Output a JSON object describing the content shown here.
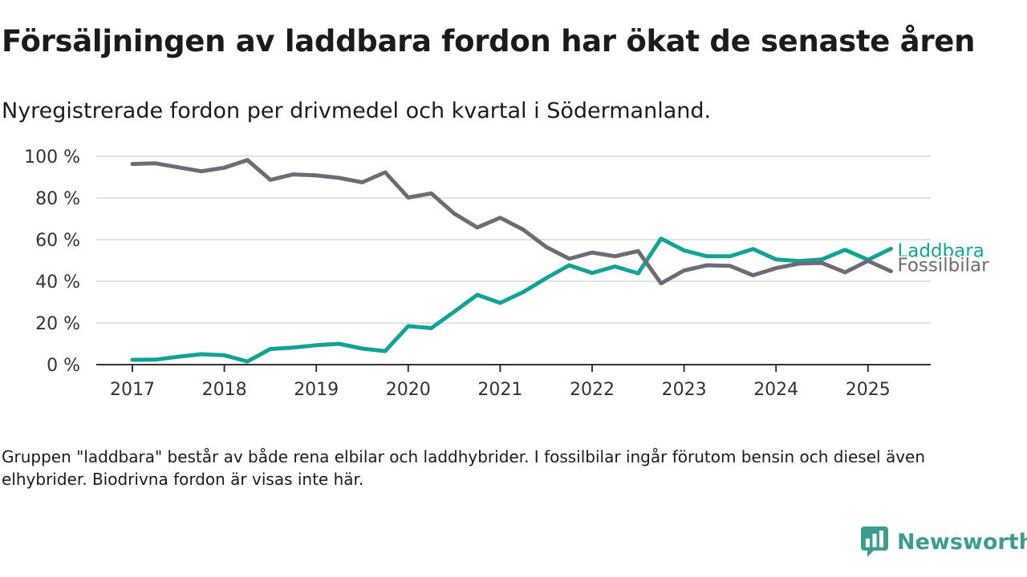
{
  "title": "Försäljningen av laddbara fordon har ökat de senaste åren",
  "subtitle": "Nyregistrerade fordon per drivmedel och kvartal i Södermanland.",
  "note": "Gruppen \"laddbara\" består av både rena elbilar och laddhybrider. I fossilbilar ingår förutom bensin och diesel även elhybrider. Biodrivna fordon är visas inte här.",
  "brand": {
    "name": "Newsworthy",
    "color": "#3d9c8e"
  },
  "chart_data": {
    "type": "line",
    "x": [
      2017.0,
      2017.25,
      2017.5,
      2017.75,
      2018.0,
      2018.25,
      2018.5,
      2018.75,
      2019.0,
      2019.25,
      2019.5,
      2019.75,
      2020.0,
      2020.25,
      2020.5,
      2020.75,
      2021.0,
      2021.25,
      2021.5,
      2021.75,
      2022.0,
      2022.25,
      2022.5,
      2022.75,
      2023.0,
      2023.25,
      2023.5,
      2023.75,
      2024.0,
      2024.25,
      2024.5,
      2024.75,
      2025.0,
      2025.25
    ],
    "xticks": [
      2017,
      2018,
      2019,
      2020,
      2021,
      2022,
      2023,
      2024,
      2025
    ],
    "xtick_labels": [
      "2017",
      "2018",
      "2019",
      "2020",
      "2021",
      "2022",
      "2023",
      "2024",
      "2025"
    ],
    "yticks": [
      0,
      20,
      40,
      60,
      80,
      100
    ],
    "ytick_labels": [
      "0 %",
      "20 %",
      "40 %",
      "60 %",
      "80 %",
      "100 %"
    ],
    "ylim": [
      0,
      100
    ],
    "grid": true,
    "series": [
      {
        "name": "Fossilbilar",
        "color": "#6c6c74",
        "values": [
          96.3,
          96.6,
          94.7,
          92.8,
          94.5,
          98.2,
          88.7,
          91.3,
          90.8,
          89.6,
          87.5,
          92.3,
          80.2,
          82.2,
          72.5,
          65.8,
          70.5,
          64.8,
          56.5,
          50.8,
          53.8,
          52.0,
          54.5,
          39.0,
          45.2,
          47.7,
          47.4,
          42.9,
          46.3,
          48.5,
          48.8,
          44.3,
          49.8,
          44.8
        ]
      },
      {
        "name": "Laddbara",
        "color": "#13a396",
        "values": [
          2.3,
          2.4,
          3.8,
          5.0,
          4.5,
          1.5,
          7.5,
          8.2,
          9.3,
          10.0,
          7.7,
          6.5,
          18.5,
          17.5,
          25.4,
          33.5,
          29.6,
          34.8,
          41.5,
          47.7,
          44.0,
          47.1,
          43.8,
          60.5,
          54.8,
          52.0,
          52.0,
          55.5,
          50.5,
          49.7,
          50.5,
          55.1,
          50.3,
          55.6
        ]
      }
    ]
  }
}
